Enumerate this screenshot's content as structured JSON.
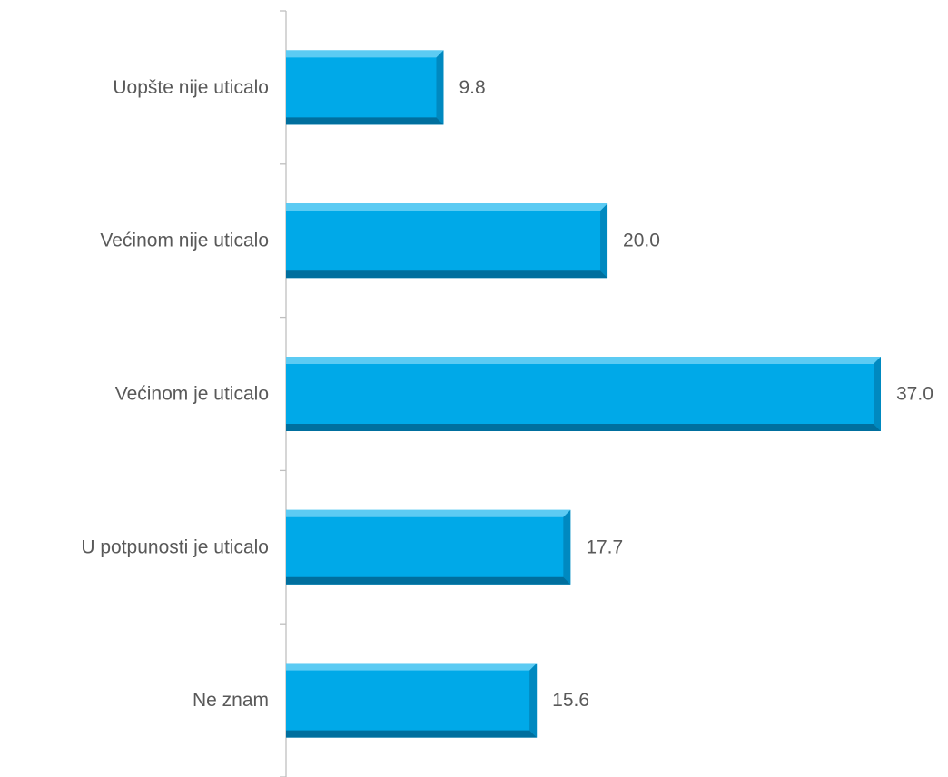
{
  "chart_data": {
    "type": "bar",
    "orientation": "horizontal",
    "categories": [
      "Uopšte nije uticalo",
      "Većinom nije uticalo",
      "Većinom je uticalo",
      "U potpunosti je uticalo",
      "Ne znam"
    ],
    "values": [
      9.8,
      20.0,
      37.0,
      17.7,
      15.6
    ],
    "value_labels": [
      "9.8",
      "20.0",
      "37.0",
      "17.7",
      "15.6"
    ],
    "xlim": [
      0,
      37.0
    ],
    "title": "",
    "xlabel": "",
    "ylabel": "",
    "grid": false,
    "legend": "none",
    "colors": {
      "bar": "#00A9E8",
      "bar_light": "#5CCBF3",
      "bar_dark": "#006F9E",
      "text": "#595959",
      "axis": "#BFBFBF"
    }
  }
}
